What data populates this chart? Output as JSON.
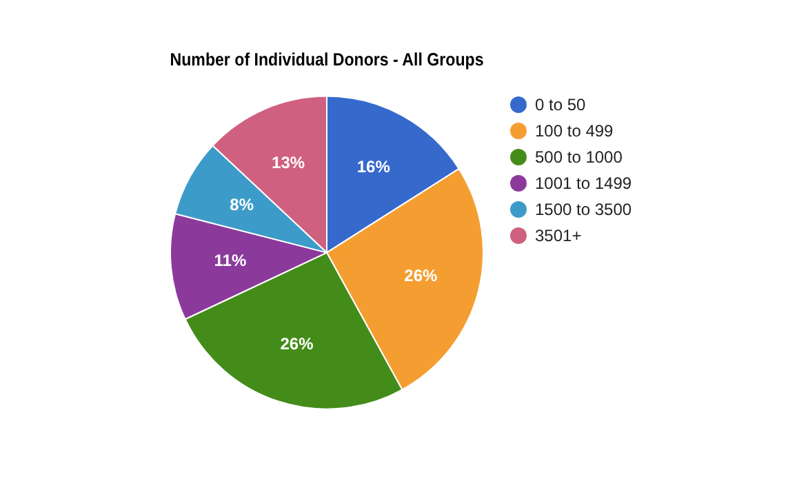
{
  "chart_data": {
    "type": "pie",
    "title": "Number of Individual Donors - All Groups",
    "categories": [
      "0 to 50",
      "100 to 499",
      "500 to 1000",
      "1001 to 1499",
      "1500 to 3500",
      "3501+"
    ],
    "values": [
      16,
      26,
      26,
      11,
      8,
      13
    ],
    "value_labels": [
      "16%",
      "26%",
      "26%",
      "11%",
      "8%",
      "13%"
    ],
    "colors": [
      "#3669cc",
      "#f49e32",
      "#448c1a",
      "#8b3a9c",
      "#3d9bc9",
      "#d0607f"
    ],
    "legend": "top right"
  }
}
